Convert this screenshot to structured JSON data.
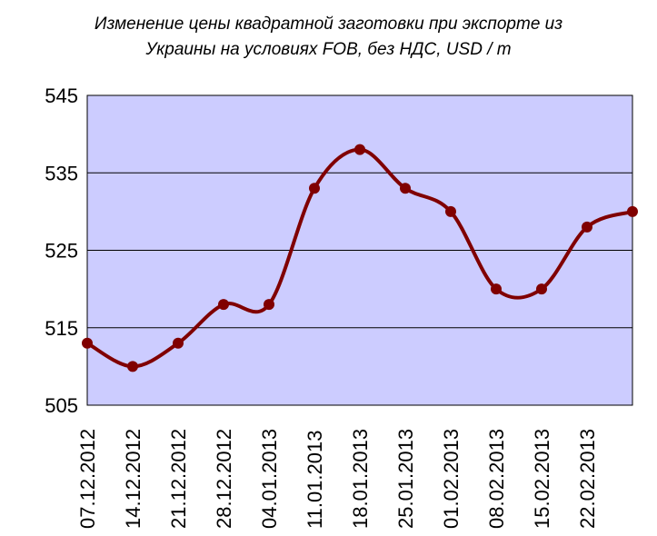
{
  "chart_data": {
    "type": "line",
    "title": [
      "Изменение цены квадратной заготовки при экспорте из",
      "Украины на условиях FOB, без НДС, USD / т"
    ],
    "categories": [
      "07.12.2012",
      "14.12.2012",
      "21.12.2012",
      "28.12.2012",
      "04.01.2013",
      "11.01.2013",
      "18.01.2013",
      "25.01.2013",
      "01.02.2013",
      "08.02.2013",
      "15.02.2013",
      "22.02.2013",
      ""
    ],
    "values": [
      513,
      510,
      513,
      518,
      518,
      533,
      538,
      533,
      530,
      520,
      520,
      528,
      530
    ],
    "ylim": [
      505,
      545
    ],
    "yticks": [
      "505",
      "515",
      "525",
      "535",
      "545"
    ],
    "grid": true,
    "smooth": true,
    "colors": {
      "line": "#800000",
      "plot_bg": "#CCCCFF"
    }
  }
}
